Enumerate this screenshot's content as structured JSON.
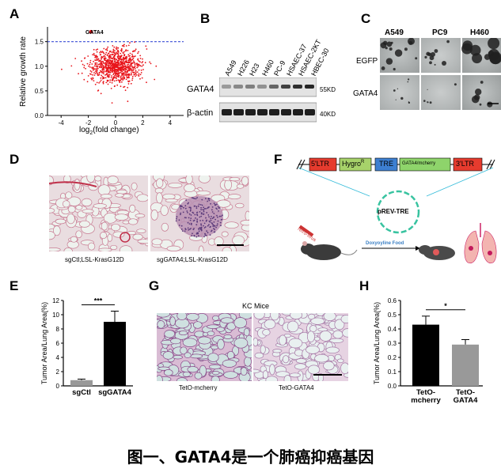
{
  "caption": "图一、GATA4是一个肺癌抑癌基因",
  "panels": {
    "A": {
      "letter": "A",
      "ylabel": "Relative growth rate",
      "xlabel_main": "log",
      "xlabel_sub": "2",
      "xlabel_tail": "(fold change)",
      "annotation": "GATA4",
      "accent": "#e8141a"
    },
    "B": {
      "letter": "B",
      "cell_lines": [
        "A549",
        "H226",
        "H23",
        "H460",
        "PC-9",
        "HSAEC-37",
        "HSAEC-2KT",
        "HBEC-30"
      ],
      "row1": "GATA4",
      "row2": "β-actin",
      "mw1": "55KD",
      "mw2": "40KD"
    },
    "C": {
      "letter": "C",
      "cols": [
        "A549",
        "PC9",
        "H460"
      ],
      "rows": [
        "EGFP",
        "GATA4"
      ]
    },
    "D": {
      "letter": "D",
      "label_left": "sgCtl;LSL-KrasG12D",
      "label_right": "sgGATA4;LSL-KrasG12D"
    },
    "E": {
      "letter": "E",
      "significance": "***"
    },
    "F": {
      "letter": "F",
      "ltr_left": "5'LTR",
      "hygro": "Hygro",
      "hygro_sup": "R",
      "tre": "TRE",
      "insert": "GATA4/mcherry",
      "ltr_right": "3'LTR",
      "plasmid": "pREV-TRE",
      "virus": "retro-virus",
      "food": "Doxyoyline Food"
    },
    "G": {
      "letter": "G",
      "title": "KC Mice",
      "label_left": "TetO-mcherry",
      "label_right": "TetO-GATA4"
    },
    "H": {
      "letter": "H",
      "significance": "*"
    }
  },
  "chart_data": [
    {
      "type": "scatter",
      "panel": "A",
      "title": "",
      "xlabel": "log2(fold change)",
      "ylabel": "Relative growth rate",
      "xlim": [
        -5,
        5
      ],
      "ylim": [
        0,
        1.8
      ],
      "xticks": [
        "-4",
        "-2",
        "0",
        "2",
        "4"
      ],
      "yticks": [
        "0.0",
        "0.5",
        "1.0",
        "1.5"
      ],
      "threshold_line": 1.5,
      "highlight": {
        "name": "GATA4",
        "x": -1.8,
        "y": 1.7
      },
      "point_color": "#e8141a",
      "point_count": 900
    },
    {
      "type": "bar",
      "panel": "E",
      "title": "",
      "ylabel": "Tumor Area/Lung Area(%)",
      "categories": [
        "sgCtl",
        "sgGATA4"
      ],
      "values": [
        0.8,
        9.0
      ],
      "errors": [
        0.15,
        1.5
      ],
      "colors": [
        "#999999",
        "#000000"
      ],
      "ylim": [
        0,
        12
      ],
      "yticks": [
        "0",
        "2",
        "4",
        "6",
        "8",
        "10",
        "12"
      ],
      "significance": "***"
    },
    {
      "type": "bar",
      "panel": "H",
      "title": "",
      "ylabel": "Tumor Area/Lung Area(%)",
      "categories": [
        "TetO-\nmcherry",
        "TetO-\nGATA4"
      ],
      "values": [
        0.43,
        0.29
      ],
      "errors": [
        0.06,
        0.035
      ],
      "colors": [
        "#000000",
        "#999999"
      ],
      "ylim": [
        0,
        0.6
      ],
      "yticks": [
        "0.0",
        "0.1",
        "0.2",
        "0.3",
        "0.4",
        "0.5",
        "0.6"
      ],
      "significance": "*"
    }
  ]
}
